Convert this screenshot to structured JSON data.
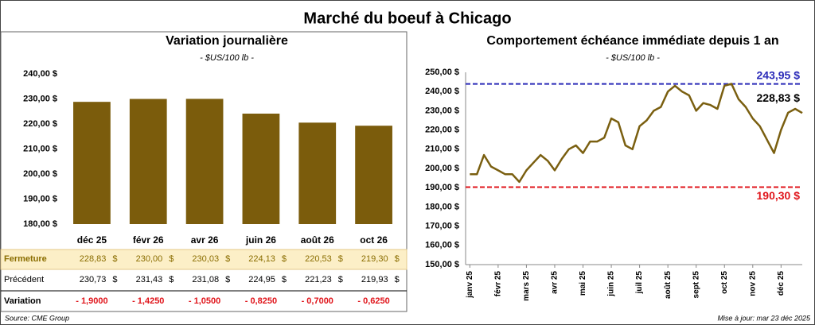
{
  "title": "Marché du boeuf à Chicago",
  "chart_data": [
    {
      "type": "bar",
      "title": "Variation journalière",
      "subtitle": "- $US/100 lb -",
      "categories": [
        "déc 25",
        "févr 26",
        "avr 26",
        "juin 26",
        "août 26",
        "oct 26"
      ],
      "values": [
        228.83,
        230.0,
        230.03,
        224.13,
        220.53,
        219.3
      ],
      "color": "#7b5c0c",
      "ylim": [
        180,
        240
      ],
      "yticks": [
        {
          "value": 180,
          "label": "180,00 $"
        },
        {
          "value": 190,
          "label": "190,00 $"
        },
        {
          "value": 200,
          "label": "200,00 $"
        },
        {
          "value": 210,
          "label": "210,00 $"
        },
        {
          "value": 220,
          "label": "220,00 $"
        },
        {
          "value": 230,
          "label": "230,00 $"
        },
        {
          "value": 240,
          "label": "240,00 $"
        }
      ],
      "grid": false
    },
    {
      "type": "line",
      "title": "Comportement échéance immédiate depuis 1 an",
      "subtitle": "- $US/100 lb -",
      "x": [
        0,
        0.25,
        0.5,
        0.75,
        1,
        1.25,
        1.5,
        1.75,
        2,
        2.25,
        2.5,
        2.75,
        3,
        3.25,
        3.5,
        3.75,
        4,
        4.25,
        4.5,
        4.75,
        5,
        5.25,
        5.5,
        5.75,
        6,
        6.25,
        6.5,
        6.75,
        7,
        7.25,
        7.5,
        7.75,
        8,
        8.25,
        8.5,
        8.75,
        9,
        9.25,
        9.5,
        9.75,
        10,
        10.25,
        10.5,
        10.75,
        11,
        11.25,
        11.5,
        11.75
      ],
      "series": [
        {
          "color": "#7a5f10",
          "values": [
            197,
            197,
            207,
            201,
            199,
            197,
            197,
            193,
            199,
            203,
            207,
            204,
            199,
            205,
            210,
            212,
            208,
            214,
            214,
            216,
            226,
            224,
            212,
            210,
            222,
            225,
            230,
            232,
            240,
            243,
            240,
            238,
            230,
            234,
            233,
            231,
            243,
            244,
            236,
            232,
            226,
            222,
            215,
            208,
            220,
            229,
            231,
            228.83
          ]
        }
      ],
      "xlim": [
        -0.15,
        11.75
      ],
      "xticks": [
        {
          "value": 0,
          "label": "janv 25"
        },
        {
          "value": 1,
          "label": "févr 25"
        },
        {
          "value": 2,
          "label": "mars 25"
        },
        {
          "value": 3,
          "label": "avr 25"
        },
        {
          "value": 4,
          "label": "mai 25"
        },
        {
          "value": 5,
          "label": "juin 25"
        },
        {
          "value": 6,
          "label": "juil 25"
        },
        {
          "value": 7,
          "label": "août 25"
        },
        {
          "value": 8,
          "label": "sept 25"
        },
        {
          "value": 9,
          "label": "oct 25"
        },
        {
          "value": 10,
          "label": "nov 25"
        },
        {
          "value": 11,
          "label": "déc 25"
        }
      ],
      "ylim": [
        150,
        250
      ],
      "yticks": [
        {
          "value": 150,
          "label": "150,00 $"
        },
        {
          "value": 160,
          "label": "160,00 $"
        },
        {
          "value": 170,
          "label": "170,00 $"
        },
        {
          "value": 180,
          "label": "180,00 $"
        },
        {
          "value": 190,
          "label": "190,00 $"
        },
        {
          "value": 200,
          "label": "200,00 $"
        },
        {
          "value": 210,
          "label": "210,00 $"
        },
        {
          "value": 220,
          "label": "220,00 $"
        },
        {
          "value": 230,
          "label": "230,00 $"
        },
        {
          "value": 240,
          "label": "240,00 $"
        },
        {
          "value": 250,
          "label": "250,00 $"
        }
      ],
      "hlines": [
        {
          "value": 243.95,
          "label": "243,95 $",
          "color": "#2a2ab8"
        },
        {
          "value": 190.3,
          "label": "190,30 $",
          "color": "#e0151b"
        }
      ],
      "annotations": [
        {
          "value": 228.83,
          "label": "228,83 $"
        }
      ],
      "grid": false
    }
  ],
  "table": {
    "unit": "$",
    "rows": [
      {
        "label": "Fermeture",
        "cells": [
          "228,83",
          "230,00",
          "230,03",
          "224,13",
          "220,53",
          "219,30"
        ]
      },
      {
        "label": "Précédent",
        "cells": [
          "230,73",
          "231,43",
          "231,08",
          "224,95",
          "221,23",
          "219,93"
        ]
      },
      {
        "label": "Variation",
        "cells": [
          "- 1,9000",
          "- 1,4250",
          "- 1,0500",
          "- 0,8250",
          "- 0,7000",
          "- 0,6250"
        ]
      }
    ]
  },
  "source": "Source: CME Group",
  "updated": "Mise à jour: mar 23 déc 2025"
}
